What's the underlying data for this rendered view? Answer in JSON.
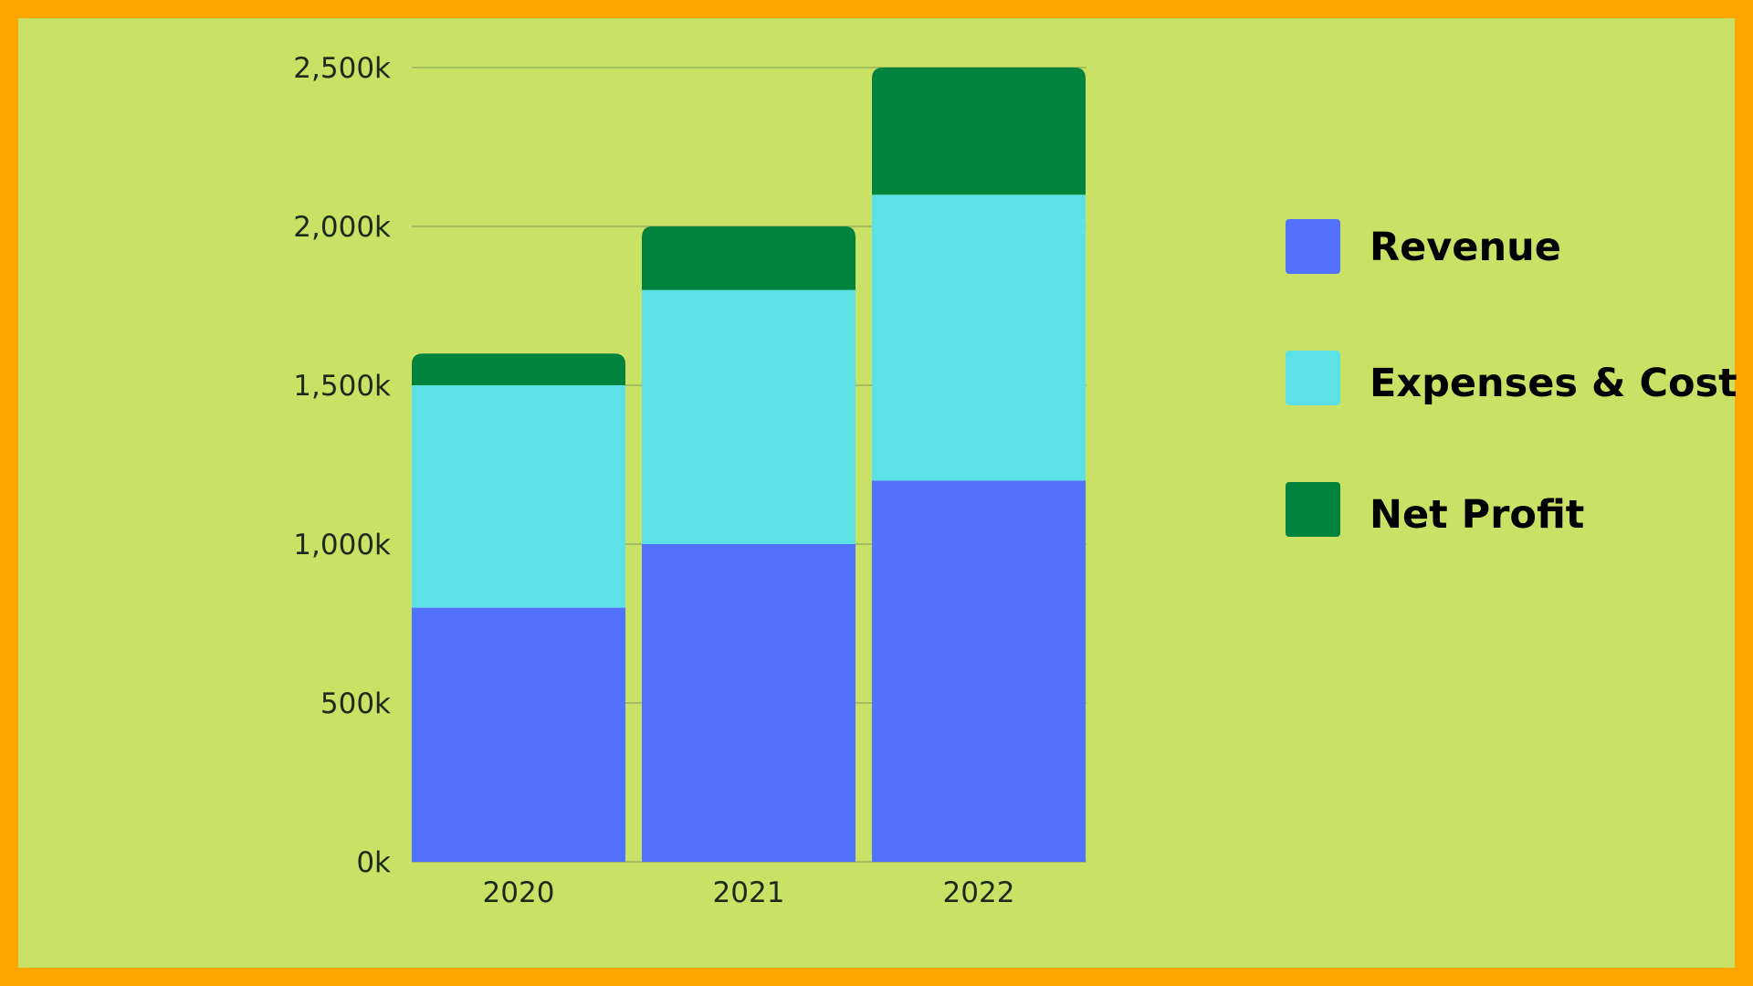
{
  "chart_data": {
    "type": "bar",
    "stacked": true,
    "title": "",
    "xlabel": "",
    "ylabel": "",
    "categories": [
      "2020",
      "2021",
      "2022"
    ],
    "series": [
      {
        "name": "Revenue",
        "color": "#5271FF",
        "values": [
          800,
          1000,
          1200
        ]
      },
      {
        "name": "Expenses & Cost",
        "color": "#5CE1E6",
        "values": [
          700,
          800,
          900
        ]
      },
      {
        "name": "Net Profit",
        "color": "#00843D",
        "values": [
          100,
          200,
          400
        ]
      }
    ],
    "y_ticks": [
      {
        "value": 0,
        "label": "0k"
      },
      {
        "value": 500,
        "label": "500k"
      },
      {
        "value": 1000,
        "label": "1,000k"
      },
      {
        "value": 1500,
        "label": "1,500k"
      },
      {
        "value": 2000,
        "label": "2,000k"
      },
      {
        "value": 2500,
        "label": "2,500k"
      }
    ],
    "ylim": [
      0,
      2500
    ],
    "grid": true,
    "legend_position": "right"
  },
  "colors": {
    "background": "#C9E265",
    "frame": "#FFA500",
    "gridline": "#8AA85A"
  }
}
